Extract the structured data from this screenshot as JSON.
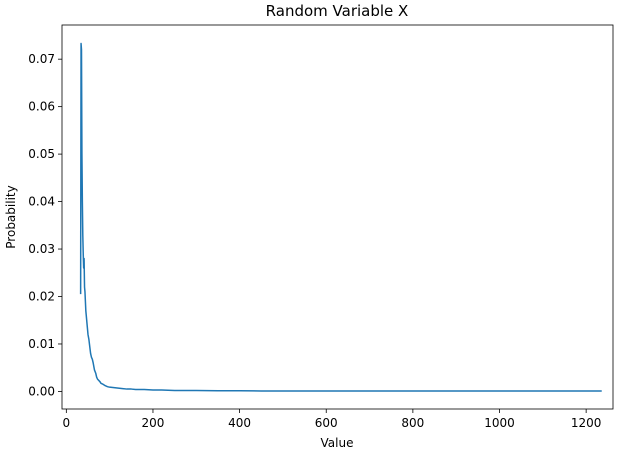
{
  "chart_data": {
    "type": "line",
    "title": "Random Variable X",
    "xlabel": "Value",
    "ylabel": "Probability",
    "xlim": [
      -10,
      1262
    ],
    "ylim": [
      -0.0037,
      0.0772
    ],
    "xticks": [
      0,
      200,
      400,
      600,
      800,
      1000,
      1200
    ],
    "xtick_labels": [
      "0",
      "200",
      "400",
      "600",
      "800",
      "1000",
      "1200"
    ],
    "yticks": [
      0.0,
      0.01,
      0.02,
      0.03,
      0.04,
      0.05,
      0.06,
      0.07
    ],
    "ytick_labels": [
      "0.00",
      "0.01",
      "0.02",
      "0.03",
      "0.04",
      "0.05",
      "0.06",
      "0.07"
    ],
    "grid": false,
    "legend": "none",
    "series": [
      {
        "color": "#1f77b4",
        "x": [
          33,
          34,
          35,
          36,
          37,
          38,
          39,
          40,
          41,
          42,
          43,
          44,
          45,
          46,
          47,
          48,
          49,
          50,
          52,
          54,
          56,
          58,
          60,
          62,
          65,
          68,
          70,
          72,
          75,
          78,
          80,
          85,
          90,
          95,
          100,
          110,
          120,
          130,
          140,
          150,
          160,
          170,
          180,
          200,
          220,
          250,
          300,
          350,
          400,
          450,
          500,
          550,
          600,
          650,
          700,
          750,
          800,
          850,
          900,
          950,
          1000,
          1050,
          1100,
          1150,
          1200,
          1236
        ],
        "y": [
          0.0205,
          0.0733,
          0.072,
          0.05,
          0.04,
          0.033,
          0.029,
          0.026,
          0.028,
          0.022,
          0.021,
          0.019,
          0.017,
          0.016,
          0.015,
          0.014,
          0.013,
          0.012,
          0.011,
          0.0095,
          0.008,
          0.0072,
          0.0068,
          0.006,
          0.0045,
          0.0038,
          0.003,
          0.0026,
          0.0023,
          0.002,
          0.0017,
          0.0015,
          0.0012,
          0.001,
          0.0009,
          0.0008,
          0.0007,
          0.0006,
          0.0005,
          0.0005,
          0.0004,
          0.0004,
          0.0004,
          0.0003,
          0.0003,
          0.0002,
          0.0002,
          0.00015,
          0.00015,
          0.0001,
          0.0001,
          0.0001,
          0.0001,
          0.0001,
          0.0001,
          0.0001,
          0.0001,
          0.0001,
          0.0001,
          0.0001,
          0.0001,
          0.0001,
          0.0001,
          0.0001,
          0.0001,
          0.0001
        ]
      }
    ]
  }
}
